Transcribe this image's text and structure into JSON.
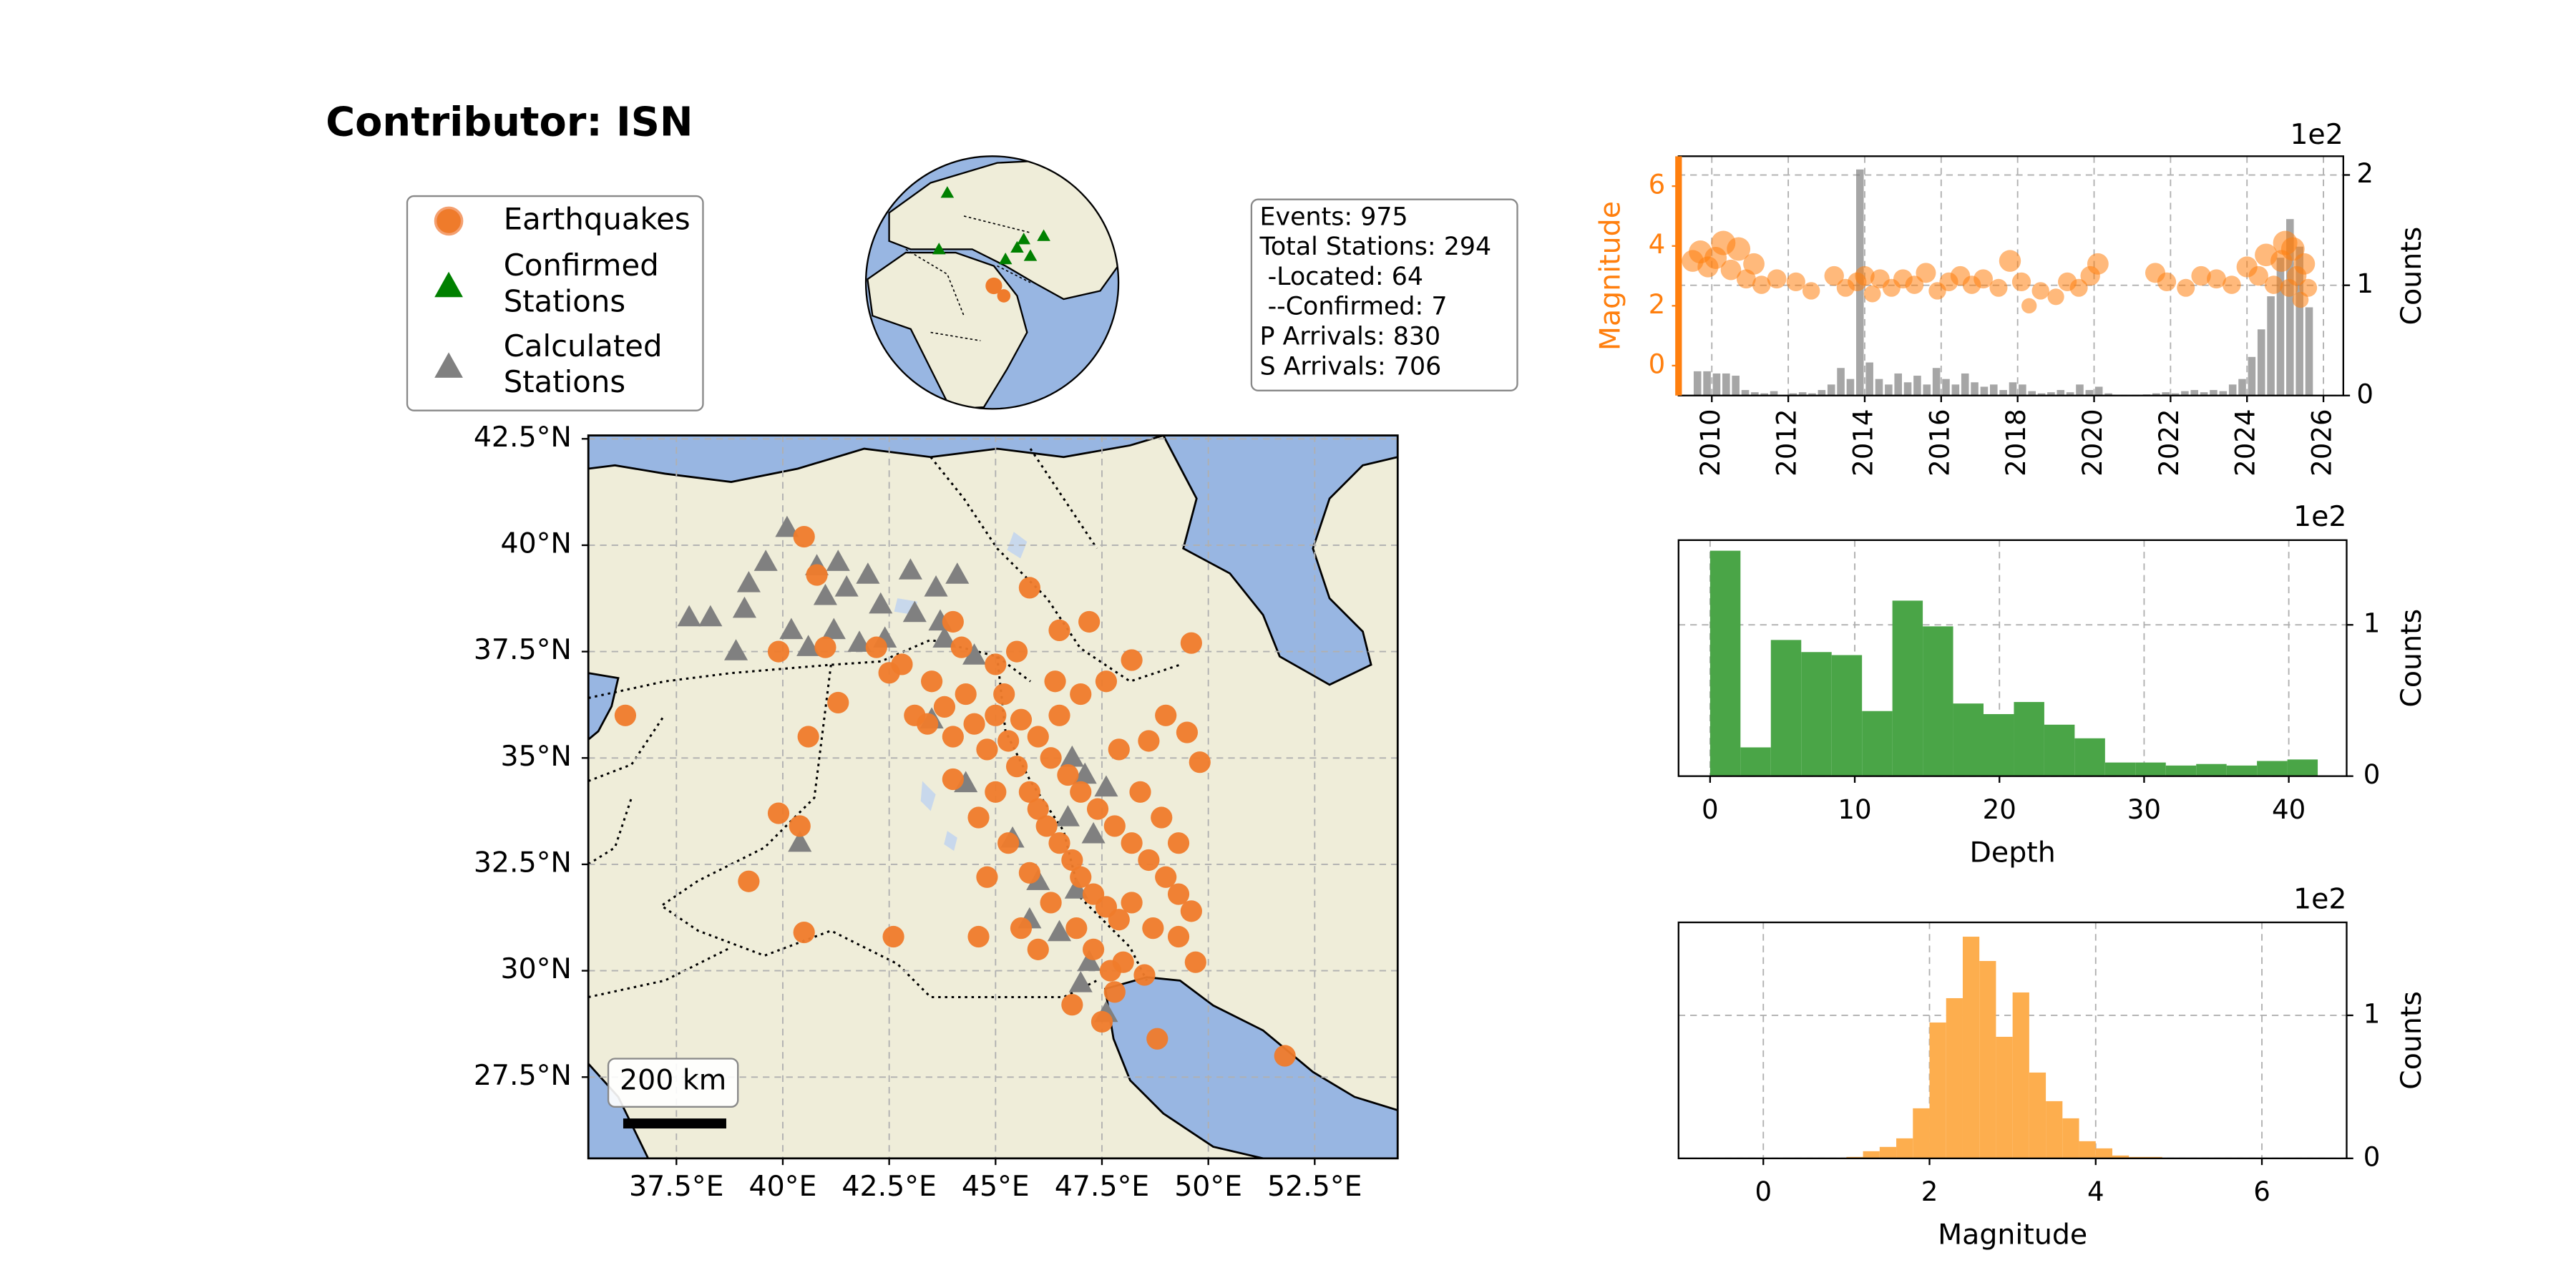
{
  "title": "Contributor: ISN",
  "info_box": {
    "lines": [
      "Events: 975",
      "Total Stations: 294",
      " -Located: 64",
      " --Confirmed: 7",
      "P Arrivals: 830",
      "S Arrivals: 706"
    ]
  },
  "chart_data": [
    {
      "type": "map",
      "scale_bar_label": "200 km",
      "grid": true,
      "xlim": [
        35.43,
        54.45
      ],
      "ylim": [
        25.59,
        42.58
      ],
      "xticks": [
        {
          "value": 37.5,
          "label": "37.5°E"
        },
        {
          "value": 40,
          "label": "40°E"
        },
        {
          "value": 42.5,
          "label": "42.5°E"
        },
        {
          "value": 45,
          "label": "45°E"
        },
        {
          "value": 47.5,
          "label": "47.5°E"
        },
        {
          "value": 50,
          "label": "50°E"
        },
        {
          "value": 52.5,
          "label": "52.5°E"
        }
      ],
      "yticks": [
        {
          "value": 27.5,
          "label": "27.5°N"
        },
        {
          "value": 30,
          "label": "30°N"
        },
        {
          "value": 32.5,
          "label": "32.5°N"
        },
        {
          "value": 35,
          "label": "35°N"
        },
        {
          "value": 37.5,
          "label": "37.5°N"
        },
        {
          "value": 40,
          "label": "40°N"
        },
        {
          "value": 42.5,
          "label": "42.5°N"
        }
      ],
      "series": [
        {
          "name": "Earthquakes",
          "color": "#ef7b2b",
          "marker": "circle",
          "x": [
            36.3,
            40.5,
            40.8,
            39.9,
            40.6,
            41.0,
            41.3,
            42.2,
            42.5,
            39.9,
            40.4,
            39.2,
            40.5,
            42.6,
            44.6,
            45.8,
            49.6,
            46.5,
            47.2,
            51.8,
            48.8,
            49.7,
            46.8,
            47.5,
            47.8,
            48.0,
            48.5,
            43.5,
            43.8,
            44.0,
            44.3,
            44.5,
            44.8,
            45.0,
            45.3,
            45.5,
            45.8,
            46.0,
            46.2,
            46.5,
            46.8,
            47.0,
            47.3,
            47.6,
            47.9,
            45.2,
            45.6,
            46.0,
            46.3,
            46.7,
            47.0,
            47.4,
            47.8,
            48.2,
            48.6,
            49.0,
            49.3,
            49.6,
            48.4,
            48.9,
            49.3,
            47.9,
            48.6,
            49.0,
            49.5,
            49.8,
            47.0,
            46.4,
            45.0,
            44.2,
            43.4,
            44.0,
            44.6,
            45.3,
            45.8,
            46.3,
            46.9,
            47.3,
            47.7,
            48.2,
            48.7,
            49.3,
            44.8,
            45.0,
            46.5,
            47.6,
            48.2,
            45.5,
            44.0,
            43.1,
            42.8,
            46.0,
            45.6
          ],
          "values": [
            36.0,
            40.2,
            39.3,
            37.5,
            35.5,
            37.6,
            36.3,
            37.6,
            37.0,
            33.7,
            33.4,
            32.1,
            30.9,
            30.8,
            30.8,
            39.0,
            37.7,
            38.0,
            38.2,
            28.0,
            28.4,
            30.2,
            29.2,
            28.8,
            29.5,
            30.2,
            29.9,
            36.8,
            36.2,
            35.5,
            36.5,
            35.8,
            35.2,
            36.0,
            35.4,
            34.8,
            34.2,
            33.8,
            33.4,
            33.0,
            32.6,
            32.2,
            31.8,
            31.5,
            31.2,
            36.5,
            35.9,
            35.5,
            35.0,
            34.6,
            34.2,
            33.8,
            33.4,
            33.0,
            32.6,
            32.2,
            31.8,
            31.4,
            34.2,
            33.6,
            33.0,
            35.2,
            35.4,
            36.0,
            35.6,
            34.9,
            36.5,
            36.8,
            37.2,
            37.6,
            35.8,
            34.5,
            33.6,
            33.0,
            32.3,
            31.6,
            31.0,
            30.5,
            30.0,
            31.6,
            31.0,
            30.8,
            32.2,
            34.2,
            36.0,
            36.8,
            37.3,
            37.5,
            38.2,
            36.0,
            37.2,
            30.5,
            31.0
          ]
        },
        {
          "name": "Confirmed\nStations",
          "color": "#008000",
          "marker": "triangle",
          "x": [],
          "values": []
        },
        {
          "name": "Calculated\nStations",
          "color": "#808080",
          "marker": "triangle",
          "x": [
            37.8,
            38.3,
            39.1,
            39.2,
            39.6,
            40.1,
            40.8,
            41.3,
            41.5,
            42.0,
            42.3,
            43.0,
            43.6,
            44.1,
            40.2,
            40.6,
            41.2,
            41.8,
            42.4,
            43.1,
            43.8,
            44.5,
            38.9,
            43.5,
            44.3,
            45.4,
            46.8,
            47.1,
            47.6,
            46.7,
            47.3,
            46.0,
            46.9,
            45.8,
            46.5,
            47.0,
            47.6,
            47.2,
            40.4,
            41.0,
            43.7
          ],
          "values": [
            38.3,
            38.3,
            38.5,
            39.1,
            39.6,
            40.4,
            39.5,
            39.6,
            39.0,
            39.3,
            38.6,
            39.4,
            39.0,
            39.3,
            38.0,
            37.6,
            38.0,
            37.7,
            37.8,
            38.4,
            37.8,
            37.4,
            37.5,
            35.9,
            34.4,
            33.1,
            35.0,
            34.6,
            34.3,
            33.6,
            33.2,
            32.1,
            31.9,
            31.2,
            30.9,
            29.7,
            29.0,
            30.2,
            33.0,
            38.8,
            38.2
          ]
        }
      ]
    },
    {
      "type": "scatter",
      "ylabel": "Magnitude",
      "y2label": "Counts",
      "y2_offset_label": "1e2",
      "grid": true,
      "xlim": [
        2009.13,
        2026.52
      ],
      "xticks": [
        2010,
        2012,
        2014,
        2016,
        2018,
        2020,
        2022,
        2024,
        2026
      ],
      "ylim": [
        -1,
        7
      ],
      "yticks": [
        0,
        2,
        4,
        6
      ],
      "y2lim": [
        0,
        2.17
      ],
      "y2ticks": [
        0,
        1,
        2
      ],
      "series": [
        {
          "color": "#ff7f0e",
          "x": [
            2009.5,
            2009.7,
            2009.9,
            2010.1,
            2010.3,
            2010.5,
            2010.7,
            2010.9,
            2011.1,
            2011.3,
            2011.7,
            2012.2,
            2012.6,
            2013.2,
            2013.5,
            2013.8,
            2014.0,
            2014.2,
            2014.4,
            2014.7,
            2015.0,
            2015.3,
            2015.6,
            2015.9,
            2016.2,
            2016.5,
            2016.8,
            2017.1,
            2017.5,
            2017.8,
            2018.1,
            2018.3,
            2018.6,
            2019.0,
            2019.3,
            2019.6,
            2019.9,
            2020.1,
            2021.6,
            2021.9,
            2022.4,
            2022.8,
            2023.2,
            2023.6,
            2024.0,
            2024.3,
            2024.5,
            2024.7,
            2024.9,
            2025.0,
            2025.1,
            2025.2,
            2025.3,
            2025.4,
            2025.5,
            2025.6
          ],
          "values": [
            3.5,
            3.8,
            3.3,
            3.6,
            4.1,
            3.2,
            3.9,
            2.9,
            3.4,
            2.7,
            2.9,
            2.8,
            2.5,
            3.0,
            2.6,
            2.8,
            3.0,
            2.4,
            2.9,
            2.6,
            2.9,
            2.7,
            3.1,
            2.5,
            2.8,
            3.0,
            2.7,
            2.9,
            2.6,
            3.5,
            2.8,
            2.0,
            2.5,
            2.3,
            2.8,
            2.6,
            3.0,
            3.4,
            3.1,
            2.8,
            2.6,
            3.0,
            2.9,
            2.7,
            3.3,
            3.0,
            3.7,
            2.7,
            3.5,
            4.1,
            2.6,
            3.9,
            3.0,
            2.2,
            3.4,
            2.6
          ]
        }
      ],
      "histogram": {
        "color": "#808080",
        "axis": "y2",
        "bins": [
          2009.5,
          2009.75,
          2010,
          2010.25,
          2010.5,
          2010.75,
          2011,
          2011.25,
          2011.5,
          2011.75,
          2012,
          2012.25,
          2012.5,
          2012.75,
          2013,
          2013.25,
          2013.5,
          2013.75,
          2014,
          2014.25,
          2014.5,
          2014.75,
          2015,
          2015.25,
          2015.5,
          2015.75,
          2016,
          2016.25,
          2016.5,
          2016.75,
          2017,
          2017.25,
          2017.5,
          2017.75,
          2018,
          2018.25,
          2018.5,
          2018.75,
          2019,
          2019.25,
          2019.5,
          2019.75,
          2020,
          2020.25,
          2020.5,
          2020.75,
          2021,
          2021.25,
          2021.5,
          2021.75,
          2022,
          2022.25,
          2022.5,
          2022.75,
          2023,
          2023.25,
          2023.5,
          2023.75,
          2024,
          2024.25,
          2024.5,
          2024.75,
          2025,
          2025.25,
          2025.5,
          2025.75
        ],
        "values": [
          0.22,
          0.22,
          0.2,
          0.2,
          0.18,
          0.05,
          0.03,
          0.02,
          0.04,
          0,
          0.02,
          0.03,
          0.02,
          0.05,
          0.1,
          0.25,
          0.15,
          2.05,
          0.3,
          0.15,
          0.1,
          0.2,
          0.12,
          0.18,
          0.1,
          0.25,
          0.15,
          0.1,
          0.2,
          0.12,
          0.08,
          0.1,
          0.05,
          0.12,
          0.1,
          0.04,
          0.02,
          0.03,
          0.05,
          0.03,
          0.1,
          0.05,
          0.08,
          0.02,
          0,
          0,
          0,
          0.01,
          0.02,
          0.03,
          0.02,
          0.04,
          0.05,
          0.03,
          0.05,
          0.04,
          0.1,
          0.15,
          0.35,
          0.6,
          0.9,
          1.25,
          1.6,
          1.35,
          0.8
        ]
      }
    },
    {
      "type": "histogram",
      "xlabel": "Depth",
      "ylabel": "Counts",
      "y_offset_label": "1e2",
      "color": "#4aa547",
      "grid": true,
      "xlim": [
        -2.18,
        44.0
      ],
      "xticks": [
        0,
        10,
        20,
        30,
        40
      ],
      "ylim": [
        0,
        1.56
      ],
      "yticks": [
        0,
        1
      ],
      "bins": [
        0,
        2.1,
        4.2,
        6.3,
        8.4,
        10.5,
        12.6,
        14.7,
        16.8,
        18.9,
        21,
        23.1,
        25.2,
        27.3,
        29.4,
        31.5,
        33.6,
        35.7,
        37.8,
        39.9,
        42
      ],
      "values": [
        1.49,
        0.19,
        0.9,
        0.82,
        0.8,
        0.43,
        1.16,
        0.99,
        0.48,
        0.41,
        0.49,
        0.34,
        0.25,
        0.09,
        0.09,
        0.07,
        0.08,
        0.07,
        0.1,
        0.11
      ]
    },
    {
      "type": "histogram",
      "xlabel": "Magnitude",
      "ylabel": "Counts",
      "y_offset_label": "1e2",
      "color": "#fdae4e",
      "grid": true,
      "xlim": [
        -1.02,
        7.02
      ],
      "xticks": [
        0,
        2,
        4,
        6
      ],
      "ylim": [
        0,
        1.65
      ],
      "yticks": [
        0,
        1
      ],
      "bins": [
        1.0,
        1.2,
        1.4,
        1.6,
        1.8,
        2.0,
        2.2,
        2.4,
        2.6,
        2.8,
        3.0,
        3.2,
        3.4,
        3.6,
        3.8,
        4.0,
        4.2,
        4.4,
        4.6,
        4.8
      ],
      "values": [
        0.01,
        0.05,
        0.08,
        0.14,
        0.35,
        0.95,
        1.12,
        1.55,
        1.38,
        0.85,
        1.16,
        0.6,
        0.4,
        0.28,
        0.12,
        0.07,
        0.02,
        0.01,
        0.01
      ]
    }
  ]
}
